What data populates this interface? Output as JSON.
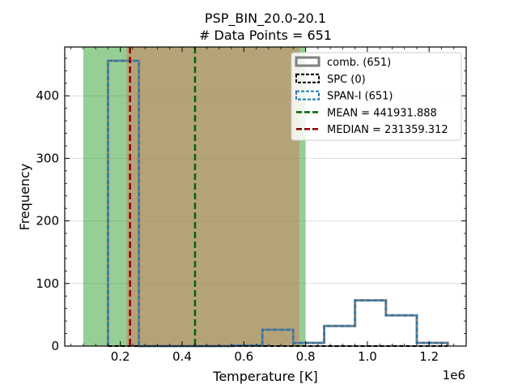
{
  "chart_data": {
    "type": "histogram",
    "title": "PSP_BIN_20.0-20.1",
    "subtitle": "# Data Points = 651",
    "xlabel": "Temperature [K]",
    "ylabel": "Frequency",
    "x_offset_label": "1e6",
    "xlim": [
      20000,
      1320000
    ],
    "ylim": [
      0,
      478
    ],
    "xticks": [
      200000,
      400000,
      600000,
      800000,
      1000000,
      1200000
    ],
    "xtick_labels": [
      "0.2",
      "0.4",
      "0.6",
      "0.8",
      "1.0",
      "1.2"
    ],
    "yticks": [
      0,
      100,
      200,
      300,
      400
    ],
    "ytick_labels": [
      "0",
      "100",
      "200",
      "300",
      "400"
    ],
    "grid": "horizontal",
    "bin_edges": [
      160000,
      260000,
      360000,
      460000,
      560000,
      660000,
      760000,
      860000,
      960000,
      1060000,
      1160000,
      1260000
    ],
    "series": [
      {
        "name": "comb. (651)",
        "counts": [
          456,
          0,
          0,
          0,
          1,
          26,
          5,
          32,
          73,
          49,
          5
        ],
        "color": "#808080",
        "style": "solid"
      },
      {
        "name": "SPC (0)",
        "counts": [
          0,
          0,
          0,
          0,
          0,
          0,
          0,
          0,
          0,
          0,
          0
        ],
        "color": "#000000",
        "style": "dashed"
      },
      {
        "name": "SPAN-I (651)",
        "counts": [
          456,
          0,
          0,
          0,
          1,
          26,
          5,
          32,
          73,
          49,
          5
        ],
        "color": "#1f77b4",
        "style": "dashed"
      }
    ],
    "shaded_regions": [
      {
        "x0": 80000,
        "x1": 800000,
        "color": "#2ca02c",
        "opacity": 0.5
      },
      {
        "x0": 220000,
        "x1": 780000,
        "color": "#d08060",
        "opacity": 0.55
      }
    ],
    "vlines": [
      {
        "name": "MEAN = 441931.888",
        "x": 441931.888,
        "color": "#006400",
        "style": "dashed"
      },
      {
        "name": "MEDIAN = 231359.312",
        "x": 231359.312,
        "color": "#8b0000",
        "style": "dashed"
      }
    ],
    "legend_position": "upper right"
  }
}
